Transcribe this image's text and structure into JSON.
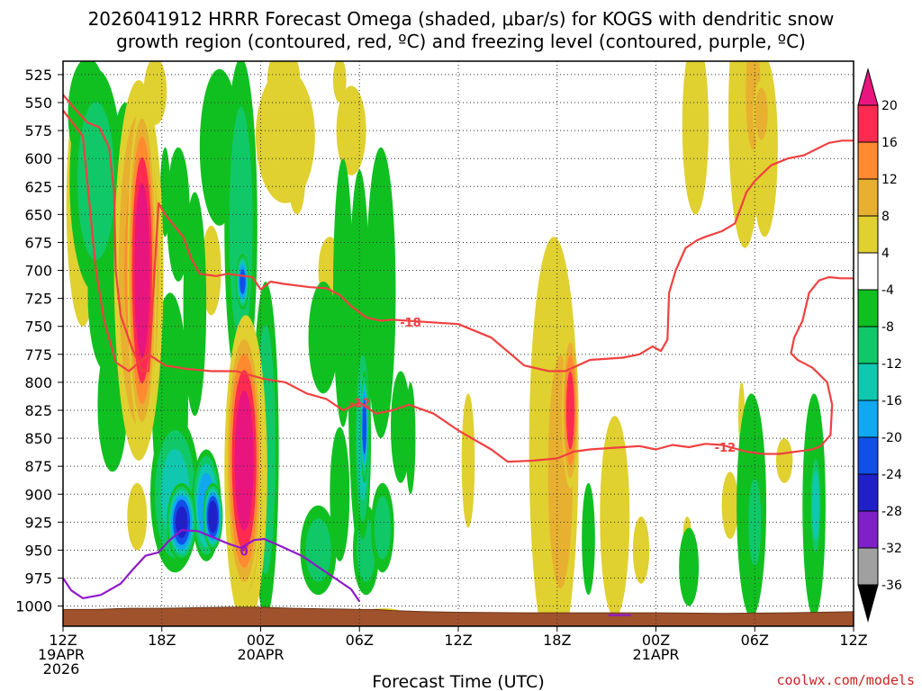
{
  "chart_data": {
    "type": "heatmap",
    "title_line1": "2026041912 HRRR Forecast Omega (shaded, μbar/s) for KOGS with dendritic snow",
    "title_line2": "growth region (contoured, red, ºC) and freezing level (contoured, purple, ºC)",
    "xlabel": "Forecast Time (UTC)",
    "ylabel": "Pressure (hPa)",
    "credit": "coolwx.com/models",
    "x_range_hours": [
      0,
      48
    ],
    "x_ticks": [
      {
        "hour": 0,
        "lines": [
          "12Z",
          "19APR",
          "2026"
        ]
      },
      {
        "hour": 6,
        "lines": [
          "18Z"
        ]
      },
      {
        "hour": 12,
        "lines": [
          "00Z",
          "20APR"
        ]
      },
      {
        "hour": 18,
        "lines": [
          "06Z"
        ]
      },
      {
        "hour": 24,
        "lines": [
          "12Z"
        ]
      },
      {
        "hour": 30,
        "lines": [
          "18Z"
        ]
      },
      {
        "hour": 36,
        "lines": [
          "00Z",
          "21APR"
        ]
      },
      {
        "hour": 42,
        "lines": [
          "06Z"
        ]
      },
      {
        "hour": 48,
        "lines": [
          "12Z"
        ]
      }
    ],
    "y_ticks": [
      525,
      550,
      575,
      600,
      625,
      650,
      675,
      700,
      725,
      750,
      775,
      800,
      825,
      850,
      875,
      900,
      925,
      950,
      975,
      1000
    ],
    "y_range_hpa": [
      513,
      1018
    ],
    "colorbar": {
      "labels": [
        "20",
        "16",
        "12",
        "8",
        "4",
        "-4",
        "-8",
        "-12",
        "-16",
        "-20",
        "-24",
        "-28",
        "-32",
        "-36"
      ],
      "colors": [
        "#ff2a50",
        "#ff8a30",
        "#e8b030",
        "#e0d030",
        "#ffffff",
        "#10c020",
        "#10c868",
        "#10c8b0",
        "#10a8f0",
        "#1050e8",
        "#2020c8",
        "#8020c8",
        "#a0a0a0"
      ],
      "top_cap": "#e8157f",
      "bottom_cap": "#000000"
    },
    "omega_blobs": [
      {
        "t": 1.2,
        "p": 640,
        "dt": 1.0,
        "dp": 110,
        "v": 5
      },
      {
        "t": 1.5,
        "p": 560,
        "dt": 1.2,
        "dp": 50,
        "v": -6
      },
      {
        "t": 2.0,
        "p": 620,
        "dt": 1.6,
        "dp": 100,
        "v": -8
      },
      {
        "t": 2.6,
        "p": 720,
        "dt": 1.1,
        "dp": 70,
        "v": -7
      },
      {
        "t": 3.0,
        "p": 820,
        "dt": 0.9,
        "dp": 60,
        "v": -6
      },
      {
        "t": 3.8,
        "p": 620,
        "dt": 0.9,
        "dp": 70,
        "v": -6
      },
      {
        "t": 4.6,
        "p": 700,
        "dt": 1.5,
        "dp": 170,
        "v": 12
      },
      {
        "t": 4.8,
        "p": 700,
        "dt": 0.9,
        "dp": 150,
        "v": 22
      },
      {
        "t": 4.5,
        "p": 920,
        "dt": 0.6,
        "dp": 30,
        "v": 6
      },
      {
        "t": 5.6,
        "p": 540,
        "dt": 0.7,
        "dp": 30,
        "v": 5
      },
      {
        "t": 6.2,
        "p": 630,
        "dt": 0.3,
        "dp": 40,
        "v": -6
      },
      {
        "t": 6.5,
        "p": 820,
        "dt": 1.1,
        "dp": 100,
        "v": -6
      },
      {
        "t": 6.8,
        "p": 900,
        "dt": 1.5,
        "dp": 70,
        "v": -12
      },
      {
        "t": 7.2,
        "p": 925,
        "dt": 0.9,
        "dp": 35,
        "v": -24
      },
      {
        "t": 7.0,
        "p": 650,
        "dt": 0.7,
        "dp": 60,
        "v": -6
      },
      {
        "t": 8.0,
        "p": 730,
        "dt": 0.7,
        "dp": 100,
        "v": -7
      },
      {
        "t": 8.7,
        "p": 910,
        "dt": 0.9,
        "dp": 50,
        "v": -18
      },
      {
        "t": 9.1,
        "p": 920,
        "dt": 0.6,
        "dp": 30,
        "v": -26
      },
      {
        "t": 9.0,
        "p": 700,
        "dt": 0.6,
        "dp": 40,
        "v": 5
      },
      {
        "t": 9.5,
        "p": 590,
        "dt": 1.2,
        "dp": 70,
        "v": -6
      },
      {
        "t": 10.8,
        "p": 660,
        "dt": 1.0,
        "dp": 150,
        "v": -8
      },
      {
        "t": 10.9,
        "p": 710,
        "dt": 0.4,
        "dp": 25,
        "v": -20
      },
      {
        "t": 11.0,
        "p": 870,
        "dt": 1.1,
        "dp": 120,
        "v": 22
      },
      {
        "t": 11.1,
        "p": 880,
        "dt": 1.3,
        "dp": 140,
        "v": 10
      },
      {
        "t": 12.3,
        "p": 860,
        "dt": 0.8,
        "dp": 150,
        "v": -9
      },
      {
        "t": 13.5,
        "p": 580,
        "dt": 1.8,
        "dp": 60,
        "v": 5
      },
      {
        "t": 13.4,
        "p": 530,
        "dt": 1.0,
        "dp": 30,
        "v": 5
      },
      {
        "t": 14.2,
        "p": 620,
        "dt": 0.5,
        "dp": 30,
        "v": 5
      },
      {
        "t": 15.8,
        "p": 760,
        "dt": 0.9,
        "dp": 50,
        "v": -7
      },
      {
        "t": 15.5,
        "p": 950,
        "dt": 1.1,
        "dp": 40,
        "v": -8
      },
      {
        "t": 16.2,
        "p": 700,
        "dt": 0.7,
        "dp": 30,
        "v": 5
      },
      {
        "t": 16.8,
        "p": 900,
        "dt": 0.6,
        "dp": 60,
        "v": -7
      },
      {
        "t": 17.0,
        "p": 720,
        "dt": 0.6,
        "dp": 120,
        "v": -7
      },
      {
        "t": 17.5,
        "p": 575,
        "dt": 0.9,
        "dp": 40,
        "v": 5
      },
      {
        "t": 18.0,
        "p": 780,
        "dt": 0.7,
        "dp": 170,
        "v": -7
      },
      {
        "t": 18.2,
        "p": 850,
        "dt": 0.5,
        "dp": 90,
        "v": -13
      },
      {
        "t": 18.3,
        "p": 840,
        "dt": 0.25,
        "dp": 50,
        "v": -21
      },
      {
        "t": 19.0,
        "p": 720,
        "dt": 0.7,
        "dp": 60,
        "v": 5
      },
      {
        "t": 19.3,
        "p": 720,
        "dt": 0.9,
        "dp": 130,
        "v": -7
      },
      {
        "t": 18.4,
        "p": 950,
        "dt": 0.8,
        "dp": 40,
        "v": -8
      },
      {
        "t": 19.4,
        "p": 930,
        "dt": 0.7,
        "dp": 40,
        "v": -8
      },
      {
        "t": 16.8,
        "p": 530,
        "dt": 0.4,
        "dp": 20,
        "v": 5
      },
      {
        "t": 19.5,
        "p": 1008,
        "dt": 1.3,
        "dp": 6,
        "v": 6
      },
      {
        "t": 20.5,
        "p": 840,
        "dt": 0.6,
        "dp": 50,
        "v": -7
      },
      {
        "t": 21.1,
        "p": 850,
        "dt": 0.3,
        "dp": 50,
        "v": -7
      },
      {
        "t": 18.1,
        "p": 870,
        "dt": 0.35,
        "dp": 40,
        "v": 5
      },
      {
        "t": 24.6,
        "p": 870,
        "dt": 0.4,
        "dp": 60,
        "v": 5
      },
      {
        "t": 29.8,
        "p": 860,
        "dt": 1.5,
        "dp": 190,
        "v": 5
      },
      {
        "t": 30.2,
        "p": 880,
        "dt": 1.0,
        "dp": 140,
        "v": 9
      },
      {
        "t": 30.8,
        "p": 825,
        "dt": 0.5,
        "dp": 70,
        "v": 16
      },
      {
        "t": 31.9,
        "p": 940,
        "dt": 0.4,
        "dp": 50,
        "v": -6
      },
      {
        "t": 33.5,
        "p": 920,
        "dt": 0.9,
        "dp": 90,
        "v": 5
      },
      {
        "t": 33.3,
        "p": 900,
        "dt": 0.3,
        "dp": 30,
        "v": 5
      },
      {
        "t": 35.1,
        "p": 950,
        "dt": 0.5,
        "dp": 30,
        "v": 5
      },
      {
        "t": 38.0,
        "p": 965,
        "dt": 0.6,
        "dp": 35,
        "v": -7
      },
      {
        "t": 37.9,
        "p": 935,
        "dt": 0.25,
        "dp": 15,
        "v": 5
      },
      {
        "t": 38.4,
        "p": 570,
        "dt": 0.8,
        "dp": 80,
        "v": 5
      },
      {
        "t": 41.4,
        "p": 560,
        "dt": 1.0,
        "dp": 120,
        "v": 5
      },
      {
        "t": 41.9,
        "p": 540,
        "dt": 0.6,
        "dp": 70,
        "v": 9
      },
      {
        "t": 42.6,
        "p": 590,
        "dt": 0.8,
        "dp": 80,
        "v": 5
      },
      {
        "t": 42.4,
        "p": 560,
        "dt": 0.5,
        "dp": 30,
        "v": 10
      },
      {
        "t": 40.5,
        "p": 910,
        "dt": 0.5,
        "dp": 30,
        "v": 5
      },
      {
        "t": 41.8,
        "p": 910,
        "dt": 0.9,
        "dp": 100,
        "v": -7
      },
      {
        "t": 42.0,
        "p": 925,
        "dt": 0.5,
        "dp": 50,
        "v": -10
      },
      {
        "t": 41.2,
        "p": 830,
        "dt": 0.2,
        "dp": 30,
        "v": 5
      },
      {
        "t": 43.8,
        "p": 870,
        "dt": 0.5,
        "dp": 20,
        "v": 5
      },
      {
        "t": 45.6,
        "p": 910,
        "dt": 0.7,
        "dp": 100,
        "v": -7
      },
      {
        "t": 45.7,
        "p": 910,
        "dt": 0.35,
        "dp": 50,
        "v": -13
      },
      {
        "t": 45.4,
        "p": 880,
        "dt": 0.2,
        "dp": 20,
        "v": 5
      }
    ],
    "surface_pressure": [
      [
        0,
        1003
      ],
      [
        2,
        1003
      ],
      [
        4,
        1002
      ],
      [
        6,
        1002
      ],
      [
        8,
        1001.5
      ],
      [
        10,
        1001
      ],
      [
        12,
        1001
      ],
      [
        14,
        1002
      ],
      [
        16,
        1002.5
      ],
      [
        18,
        1003
      ],
      [
        19,
        1003
      ],
      [
        20,
        1004
      ],
      [
        22,
        1005
      ],
      [
        24,
        1005.5
      ],
      [
        28,
        1006
      ],
      [
        32,
        1006
      ],
      [
        36,
        1006
      ],
      [
        40,
        1006.5
      ],
      [
        44,
        1006
      ],
      [
        48,
        1005
      ]
    ],
    "contours": [
      {
        "name": "isotherm-minus18",
        "label": "-18",
        "color": "#f04040",
        "points": [
          [
            0,
            543
          ],
          [
            0.8,
            557
          ],
          [
            1.5,
            568
          ],
          [
            2.2,
            572
          ],
          [
            2.8,
            590
          ],
          [
            3.1,
            630
          ],
          [
            3.2,
            700
          ],
          [
            3.5,
            740
          ],
          [
            4.2,
            770
          ],
          [
            4.8,
            790
          ],
          [
            5.2,
            790
          ],
          [
            5.8,
            640
          ],
          [
            6.2,
            650
          ],
          [
            7.3,
            670
          ],
          [
            7.8,
            690
          ],
          [
            8.3,
            703
          ],
          [
            9.3,
            705
          ],
          [
            10.0,
            703
          ],
          [
            11.5,
            706
          ],
          [
            12.0,
            717
          ],
          [
            12.6,
            710
          ],
          [
            13.4,
            712
          ],
          [
            15.0,
            715
          ],
          [
            16.0,
            716
          ],
          [
            16.8,
            722
          ],
          [
            17.5,
            732
          ],
          [
            18.4,
            742
          ],
          [
            19.3,
            745
          ],
          [
            20.0,
            744
          ],
          [
            22.0,
            746
          ],
          [
            24.0,
            748
          ],
          [
            26.0,
            760
          ],
          [
            28.0,
            785
          ],
          [
            29.5,
            790
          ],
          [
            30.5,
            790
          ],
          [
            32.0,
            780
          ],
          [
            34.0,
            778
          ],
          [
            35.0,
            775
          ],
          [
            35.8,
            768
          ],
          [
            36.3,
            772
          ],
          [
            36.7,
            762
          ],
          [
            36.8,
            720
          ],
          [
            37.2,
            700
          ],
          [
            37.8,
            680
          ],
          [
            38.5,
            673
          ],
          [
            39.0,
            670
          ],
          [
            40.0,
            665
          ],
          [
            40.8,
            658
          ],
          [
            41.5,
            630
          ],
          [
            42.0,
            620
          ],
          [
            43.0,
            606
          ],
          [
            44.0,
            600
          ],
          [
            45.0,
            597
          ],
          [
            46.5,
            586
          ],
          [
            47.3,
            584
          ],
          [
            48.0,
            584
          ]
        ]
      },
      {
        "name": "isotherm-minus12",
        "label": "-12",
        "color": "#f04040",
        "points": [
          [
            0,
            557
          ],
          [
            1.2,
            580
          ],
          [
            1.6,
            640
          ],
          [
            2.0,
            700
          ],
          [
            2.5,
            745
          ],
          [
            3.2,
            782
          ],
          [
            4.0,
            790
          ],
          [
            5.2,
            775
          ],
          [
            6.2,
            785
          ],
          [
            7.5,
            788
          ],
          [
            9.0,
            790
          ],
          [
            10.5,
            790
          ],
          [
            12.2,
            797
          ],
          [
            13.5,
            800
          ],
          [
            14.8,
            810
          ],
          [
            16.0,
            815
          ],
          [
            17.0,
            825
          ],
          [
            18.0,
            818
          ],
          [
            19.0,
            828
          ],
          [
            20.0,
            825
          ],
          [
            21.0,
            820
          ],
          [
            22.5,
            828
          ],
          [
            24.0,
            843
          ],
          [
            26.0,
            860
          ],
          [
            27.0,
            871
          ],
          [
            28.5,
            870
          ],
          [
            30.0,
            868
          ],
          [
            31.0,
            862
          ],
          [
            32.0,
            860
          ],
          [
            34.0,
            858
          ],
          [
            35.0,
            857
          ],
          [
            36.0,
            860
          ],
          [
            37.0,
            856
          ],
          [
            38.0,
            858
          ],
          [
            39.0,
            855
          ],
          [
            40.0,
            856
          ],
          [
            41.5,
            862
          ],
          [
            42.5,
            864
          ],
          [
            43.5,
            864
          ],
          [
            44.5,
            862
          ],
          [
            45.5,
            860
          ],
          [
            46.0,
            857
          ],
          [
            46.6,
            847
          ],
          [
            46.7,
            820
          ],
          [
            46.4,
            800
          ],
          [
            45.5,
            787
          ],
          [
            44.6,
            780
          ],
          [
            44.2,
            774
          ],
          [
            44.4,
            760
          ],
          [
            44.9,
            745
          ],
          [
            45.3,
            720
          ],
          [
            45.9,
            709
          ],
          [
            46.5,
            706
          ],
          [
            47.2,
            707
          ],
          [
            48.0,
            707
          ]
        ]
      },
      {
        "name": "freezing-level",
        "label": "0",
        "color": "#9018c8",
        "points": [
          [
            0,
            975
          ],
          [
            0.5,
            986
          ],
          [
            1.2,
            993
          ],
          [
            2.3,
            990
          ],
          [
            3.5,
            980
          ],
          [
            4.2,
            968
          ],
          [
            5.0,
            955
          ],
          [
            5.8,
            952
          ],
          [
            6.4,
            942
          ],
          [
            7.2,
            932
          ],
          [
            8.2,
            933
          ],
          [
            9.2,
            939
          ],
          [
            10.0,
            944
          ],
          [
            10.8,
            948
          ],
          [
            11.6,
            941
          ],
          [
            12.2,
            940
          ],
          [
            13.0,
            945
          ],
          [
            14.5,
            955
          ],
          [
            15.5,
            965
          ],
          [
            16.5,
            975
          ],
          [
            17.5,
            985
          ],
          [
            18.0,
            996
          ]
        ]
      },
      {
        "name": "freezing-level-sfc",
        "label": "",
        "color": "#9018c8",
        "points": [
          [
            33.1,
            1008
          ],
          [
            34.5,
            1008
          ]
        ]
      }
    ],
    "contour_labels": [
      {
        "text": "-18",
        "hour": 21.1,
        "p": 746,
        "color": "#f04040"
      },
      {
        "text": "-12",
        "hour": 18.0,
        "p": 818,
        "color": "#f04040"
      },
      {
        "text": "-12",
        "hour": 40.2,
        "p": 858,
        "color": "#f04040"
      },
      {
        "text": "0",
        "hour": 11.0,
        "p": 951,
        "color": "#9018c8"
      }
    ]
  }
}
